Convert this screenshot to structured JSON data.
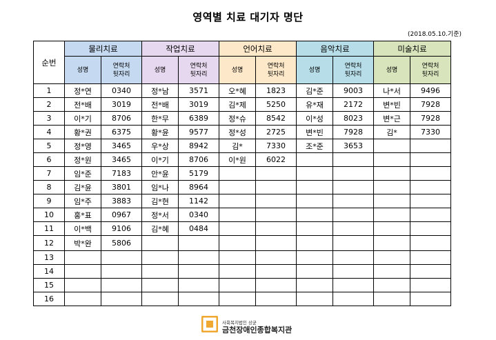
{
  "title": "영역별 치료 대기자 명단",
  "basis": "(2018.05.10.기준)",
  "seq_header": "순번",
  "categories": [
    {
      "label": "물리치료",
      "color": "#c5d9f1"
    },
    {
      "label": "작업치료",
      "color": "#e6d8ee"
    },
    {
      "label": "언어치료",
      "color": "#fde9c9"
    },
    {
      "label": "음악치료",
      "color": "#b7dee8"
    },
    {
      "label": "미술치료",
      "color": "#d7e4bc"
    }
  ],
  "sub_name": "성명",
  "sub_phone_1": "연락처",
  "sub_phone_2": "뒷자리",
  "rows": [
    {
      "no": "1",
      "c": [
        [
          "정*연",
          "0340"
        ],
        [
          "정*남",
          "3571"
        ],
        [
          "오*혜",
          "1823"
        ],
        [
          "김*준",
          "9003"
        ],
        [
          "나*서",
          "9496"
        ]
      ]
    },
    {
      "no": "2",
      "c": [
        [
          "전*배",
          "3019"
        ],
        [
          "전*배",
          "3019"
        ],
        [
          "김*제",
          "5250"
        ],
        [
          "유*재",
          "2172"
        ],
        [
          "변*빈",
          "7928"
        ]
      ]
    },
    {
      "no": "3",
      "c": [
        [
          "이*기",
          "8706"
        ],
        [
          "한*무",
          "6389"
        ],
        [
          "정*슈",
          "8542"
        ],
        [
          "이*성",
          "8023"
        ],
        [
          "변*근",
          "7928"
        ]
      ]
    },
    {
      "no": "4",
      "c": [
        [
          "황*권",
          "6375"
        ],
        [
          "황*윤",
          "9577"
        ],
        [
          "정*성",
          "2725"
        ],
        [
          "변*빈",
          "7928"
        ],
        [
          "김*",
          "7330"
        ]
      ]
    },
    {
      "no": "5",
      "c": [
        [
          "정*영",
          "3465"
        ],
        [
          "우*상",
          "8942"
        ],
        [
          "김*",
          "7330"
        ],
        [
          "조*준",
          "3653"
        ],
        [
          "",
          ""
        ]
      ]
    },
    {
      "no": "6",
      "c": [
        [
          "정*원",
          "3465"
        ],
        [
          "이*기",
          "8706"
        ],
        [
          "이*원",
          "6022"
        ],
        [
          "",
          ""
        ],
        [
          "",
          ""
        ]
      ]
    },
    {
      "no": "7",
      "c": [
        [
          "임*준",
          "7183"
        ],
        [
          "안*윤",
          "5179"
        ],
        [
          "",
          ""
        ],
        [
          "",
          ""
        ],
        [
          "",
          ""
        ]
      ]
    },
    {
      "no": "8",
      "c": [
        [
          "김*윤",
          "3801"
        ],
        [
          "임*나",
          "8964"
        ],
        [
          "",
          ""
        ],
        [
          "",
          ""
        ],
        [
          "",
          ""
        ]
      ]
    },
    {
      "no": "9",
      "c": [
        [
          "임*주",
          "3883"
        ],
        [
          "김*현",
          "1142"
        ],
        [
          "",
          ""
        ],
        [
          "",
          ""
        ],
        [
          "",
          ""
        ]
      ]
    },
    {
      "no": "10",
      "c": [
        [
          "홍*표",
          "0967"
        ],
        [
          "정*서",
          "0340"
        ],
        [
          "",
          ""
        ],
        [
          "",
          ""
        ],
        [
          "",
          ""
        ]
      ]
    },
    {
      "no": "11",
      "c": [
        [
          "이*백",
          "9106"
        ],
        [
          "김*혜",
          "0484"
        ],
        [
          "",
          ""
        ],
        [
          "",
          ""
        ],
        [
          "",
          ""
        ]
      ]
    },
    {
      "no": "12",
      "c": [
        [
          "박*완",
          "5806"
        ],
        [
          "",
          ""
        ],
        [
          "",
          ""
        ],
        [
          "",
          ""
        ],
        [
          "",
          ""
        ]
      ]
    },
    {
      "no": "13",
      "c": [
        [
          "",
          ""
        ],
        [
          "",
          ""
        ],
        [
          "",
          ""
        ],
        [
          "",
          ""
        ],
        [
          "",
          ""
        ]
      ]
    },
    {
      "no": "14",
      "c": [
        [
          "",
          ""
        ],
        [
          "",
          ""
        ],
        [
          "",
          ""
        ],
        [
          "",
          ""
        ],
        [
          "",
          ""
        ]
      ]
    },
    {
      "no": "15",
      "c": [
        [
          "",
          ""
        ],
        [
          "",
          ""
        ],
        [
          "",
          ""
        ],
        [
          "",
          ""
        ],
        [
          "",
          ""
        ]
      ]
    },
    {
      "no": "16",
      "c": [
        [
          "",
          ""
        ],
        [
          "",
          ""
        ],
        [
          "",
          ""
        ],
        [
          "",
          ""
        ],
        [
          "",
          ""
        ]
      ]
    }
  ],
  "footer": {
    "org_small": "사회복지법인 상균",
    "org_name": "금천장애인종합복지관",
    "logo_color": "#f0a830"
  }
}
